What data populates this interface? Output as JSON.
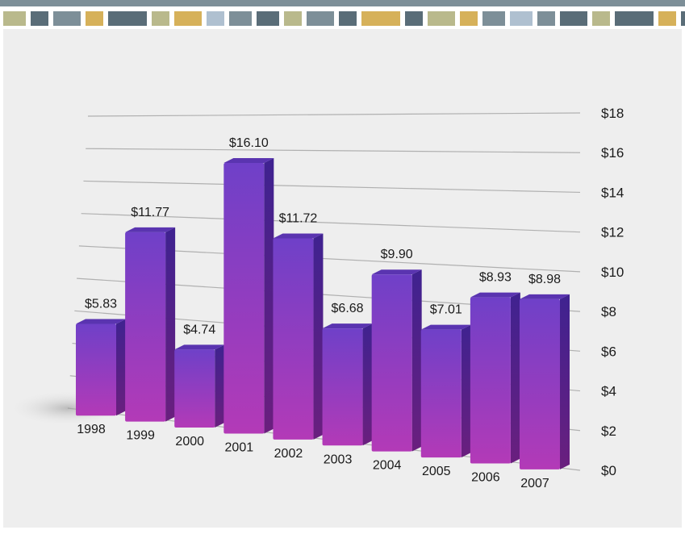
{
  "decor": {
    "palette": [
      "#7d8f98",
      "#5a6d78",
      "#b9b98c",
      "#d6b15a",
      "#afc0d0"
    ],
    "pattern": [
      2,
      1,
      0,
      3,
      1,
      2,
      3,
      4,
      0,
      1,
      2,
      0,
      1,
      3,
      1,
      2,
      3,
      0,
      4,
      0,
      1,
      2,
      1,
      3,
      1,
      2,
      3,
      4,
      0,
      1
    ]
  },
  "chart_data": {
    "type": "bar",
    "style": "3d",
    "title": "",
    "xlabel": "",
    "ylabel": "",
    "bar_color": "#7a3fc4",
    "categories": [
      "1998",
      "1999",
      "2000",
      "2001",
      "2002",
      "2003",
      "2004",
      "2005",
      "2006",
      "2007"
    ],
    "values": [
      5.83,
      11.77,
      4.74,
      16.1,
      11.72,
      6.68,
      9.9,
      7.01,
      8.93,
      8.98
    ],
    "value_labels": [
      "$5.83",
      "$11.77",
      "$4.74",
      "$16.10",
      "$11.72",
      "$6.68",
      "$9.90",
      "$7.01",
      "$8.93",
      "$8.98"
    ],
    "ylim": [
      0,
      18
    ],
    "y_ticks": [
      0,
      2,
      4,
      6,
      8,
      10,
      12,
      14,
      16,
      18
    ],
    "y_tick_labels": [
      "$0",
      "$2",
      "$4",
      "$6",
      "$8",
      "$10",
      "$12",
      "$14",
      "$16",
      "$18"
    ],
    "y_axis_side": "right",
    "grid": true
  }
}
